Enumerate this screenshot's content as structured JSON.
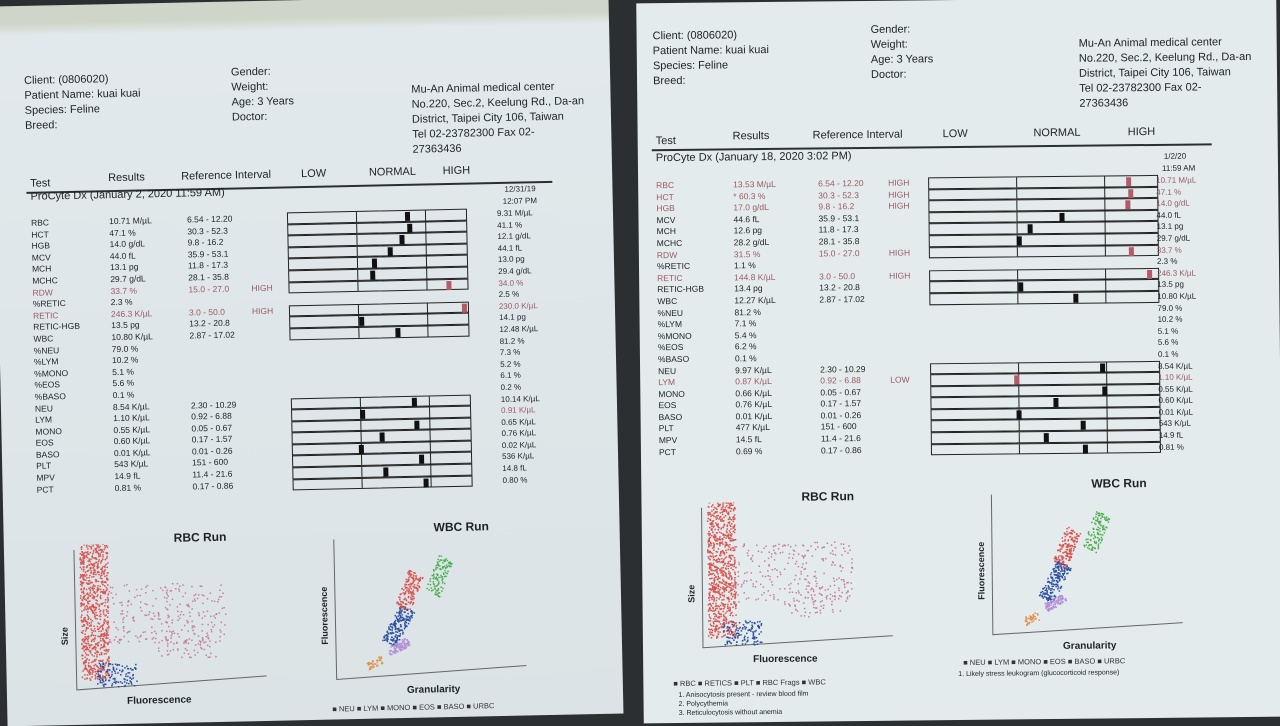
{
  "reports": [
    {
      "id": "left",
      "client": "Client: (0806020)",
      "patient": "Patient Name: kuai kuai",
      "species": "Species: Feline",
      "breed": "Breed:",
      "gender": "Gender:",
      "weight": "Weight:",
      "age": "Age: 3 Years",
      "doctor": "Doctor:",
      "clinic": [
        "Mu-An Animal medical center",
        "No.220, Sec.2, Keelung Rd., Da-an",
        "District, Taipei City 106, Taiwan",
        "Tel 02-23782300  Fax 02-",
        "27363436"
      ],
      "columns": {
        "test": "Test",
        "results": "Results",
        "ref": "Reference Interval",
        "low": "LOW",
        "normal": "NORMAL",
        "high": "HIGH"
      },
      "instrument": "ProCyte Dx (January 2, 2020 11:59 AM)",
      "prev_date": "12/31/19",
      "prev_time": "12:07 PM",
      "rows": [
        {
          "test": "RBC",
          "result": "10.71 M/µL",
          "ref": "6.54 - 12.20",
          "flag": "",
          "prev": "9.31 M/µL",
          "v": 10.71,
          "lo": 6.54,
          "hi": 12.2
        },
        {
          "test": "HCT",
          "result": "47.1 %",
          "ref": "30.3 - 52.3",
          "flag": "",
          "prev": "41.1 %",
          "v": 47.1,
          "lo": 30.3,
          "hi": 52.3
        },
        {
          "test": "HGB",
          "result": "14.0 g/dL",
          "ref": "9.8 - 16.2",
          "flag": "",
          "prev": "12.1 g/dL",
          "v": 14.0,
          "lo": 9.8,
          "hi": 16.2
        },
        {
          "test": "MCV",
          "result": "44.0 fL",
          "ref": "35.9 - 53.1",
          "flag": "",
          "prev": "44.1 fL",
          "v": 44.0,
          "lo": 35.9,
          "hi": 53.1
        },
        {
          "test": "MCH",
          "result": "13.1 pg",
          "ref": "11.8 - 17.3",
          "flag": "",
          "prev": "13.0 pg",
          "v": 13.1,
          "lo": 11.8,
          "hi": 17.3
        },
        {
          "test": "MCHC",
          "result": "29.7 g/dL",
          "ref": "28.1 - 35.8",
          "flag": "",
          "prev": "29.4 g/dL",
          "v": 29.7,
          "lo": 28.1,
          "hi": 35.8
        },
        {
          "test": "RDW",
          "result": "33.7 %",
          "ref": "15.0 - 27.0",
          "flag": "HIGH",
          "prev": "34.0 %",
          "v": 33.7,
          "lo": 15.0,
          "hi": 27.0
        },
        {
          "test": "%RETIC",
          "result": "2.3 %",
          "ref": "",
          "flag": "",
          "prev": "2.5 %"
        },
        {
          "test": "RETIC",
          "result": "246.3 K/µL",
          "ref": "3.0 - 50.0",
          "flag": "HIGH",
          "prev": "230.0 K/µL",
          "v": 246.3,
          "lo": 3.0,
          "hi": 50.0
        },
        {
          "test": "RETIC-HGB",
          "result": "13.5 pg",
          "ref": "13.2 - 20.8",
          "flag": "",
          "prev": "14.1 pg",
          "v": 13.5,
          "lo": 13.2,
          "hi": 20.8
        },
        {
          "test": "WBC",
          "result": "10.80 K/µL",
          "ref": "2.87 - 17.02",
          "flag": "",
          "prev": "12.48 K/µL",
          "v": 10.8,
          "lo": 2.87,
          "hi": 17.02
        },
        {
          "test": "%NEU",
          "result": "79.0 %",
          "ref": "",
          "flag": "",
          "prev": "81.2 %"
        },
        {
          "test": "%LYM",
          "result": "10.2 %",
          "ref": "",
          "flag": "",
          "prev": "7.3 %"
        },
        {
          "test": "%MONO",
          "result": "5.1 %",
          "ref": "",
          "flag": "",
          "prev": "5.2 %"
        },
        {
          "test": "%EOS",
          "result": "5.6 %",
          "ref": "",
          "flag": "",
          "prev": "6.1 %"
        },
        {
          "test": "%BASO",
          "result": "0.1 %",
          "ref": "",
          "flag": "",
          "prev": "0.2 %"
        },
        {
          "test": "NEU",
          "result": "8.54 K/µL",
          "ref": "2.30 - 10.29",
          "flag": "",
          "prev": "10.14 K/µL",
          "v": 8.54,
          "lo": 2.3,
          "hi": 10.29
        },
        {
          "test": "LYM",
          "result": "1.10 K/µL",
          "ref": "0.92 - 6.88",
          "flag": "",
          "prev": "0.91 K/µL",
          "prev_flag": true,
          "v": 1.1,
          "lo": 0.92,
          "hi": 6.88
        },
        {
          "test": "MONO",
          "result": "0.55 K/µL",
          "ref": "0.05 - 0.67",
          "flag": "",
          "prev": "0.65 K/µL",
          "v": 0.55,
          "lo": 0.05,
          "hi": 0.67
        },
        {
          "test": "EOS",
          "result": "0.60 K/µL",
          "ref": "0.17 - 1.57",
          "flag": "",
          "prev": "0.76 K/µL",
          "v": 0.6,
          "lo": 0.17,
          "hi": 1.57
        },
        {
          "test": "BASO",
          "result": "0.01 K/µL",
          "ref": "0.01 - 0.26",
          "flag": "",
          "prev": "0.02 K/µL",
          "v": 0.01,
          "lo": 0.01,
          "hi": 0.26
        },
        {
          "test": "PLT",
          "result": "543 K/µL",
          "ref": "151 - 600",
          "flag": "",
          "prev": "536 K/µL",
          "v": 543,
          "lo": 151,
          "hi": 600
        },
        {
          "test": "MPV",
          "result": "14.9 fL",
          "ref": "11.4 - 21.6",
          "flag": "",
          "prev": "14.8 fL",
          "v": 14.9,
          "lo": 11.4,
          "hi": 21.6
        },
        {
          "test": "PCT",
          "result": "0.81 %",
          "ref": "0.17 - 0.86",
          "flag": "",
          "prev": "0.80 %",
          "v": 0.81,
          "lo": 0.17,
          "hi": 0.86
        }
      ],
      "rbc_title": "RBC Run",
      "wbc_title": "WBC Run",
      "rbc_x": "Fluorescence",
      "rbc_y": "Size",
      "wbc_x": "Granularity",
      "wbc_y": "Fluorescence",
      "wbc_legend": "■ NEU  ■ LYM  ■ MONO  ■ EOS  ■ BASO  ■ URBC",
      "rbc_legend": "",
      "notes": []
    },
    {
      "id": "right",
      "client": "Client: (0806020)",
      "patient": "Patient Name: kuai kuai",
      "species": "Species: Feline",
      "breed": "Breed:",
      "gender": "Gender:",
      "weight": "Weight:",
      "age": "Age: 3 Years",
      "doctor": "Doctor:",
      "clinic": [
        "Mu-An Animal medical center",
        "No.220, Sec.2, Keelung Rd., Da-an",
        "District, Taipei City 106, Taiwan",
        "Tel 02-23782300  Fax 02-",
        "27363436"
      ],
      "columns": {
        "test": "Test",
        "results": "Results",
        "ref": "Reference Interval",
        "low": "LOW",
        "normal": "NORMAL",
        "high": "HIGH"
      },
      "instrument": "ProCyte Dx (January 18, 2020 3:02 PM)",
      "prev_date": "1/2/20",
      "prev_time": "11:59 AM",
      "rows": [
        {
          "test": "RBC",
          "result": "13.53 M/µL",
          "ref": "6.54 - 12.20",
          "flag": "HIGH",
          "prev": "10.71 M/µL",
          "v": 13.53,
          "lo": 6.54,
          "hi": 12.2
        },
        {
          "test": "HCT",
          "result": "* 60.3 %",
          "ref": "30.3 - 52.3",
          "flag": "HIGH",
          "prev": "47.1 %",
          "v": 60.3,
          "lo": 30.3,
          "hi": 52.3
        },
        {
          "test": "HGB",
          "result": "17.0 g/dL",
          "ref": "9.8 - 16.2",
          "flag": "HIGH",
          "prev": "14.0 g/dL",
          "v": 17.0,
          "lo": 9.8,
          "hi": 16.2
        },
        {
          "test": "MCV",
          "result": "44.6 fL",
          "ref": "35.9 - 53.1",
          "flag": "",
          "prev": "44.0 fL",
          "v": 44.6,
          "lo": 35.9,
          "hi": 53.1
        },
        {
          "test": "MCH",
          "result": "12.6 pg",
          "ref": "11.8 - 17.3",
          "flag": "",
          "prev": "13.1 pg",
          "v": 12.6,
          "lo": 11.8,
          "hi": 17.3
        },
        {
          "test": "MCHC",
          "result": "28.2 g/dL",
          "ref": "28.1 - 35.8",
          "flag": "",
          "prev": "29.7 g/dL",
          "v": 28.2,
          "lo": 28.1,
          "hi": 35.8
        },
        {
          "test": "RDW",
          "result": "31.5 %",
          "ref": "15.0 - 27.0",
          "flag": "HIGH",
          "prev": "33.7 %",
          "v": 31.5,
          "lo": 15.0,
          "hi": 27.0
        },
        {
          "test": "%RETIC",
          "result": "1.1 %",
          "ref": "",
          "flag": "",
          "prev": "2.3 %"
        },
        {
          "test": "RETIC",
          "result": "144.8 K/µL",
          "ref": "3.0 - 50.0",
          "flag": "HIGH",
          "prev": "246.3 K/µL",
          "v": 144.8,
          "lo": 3.0,
          "hi": 50.0
        },
        {
          "test": "RETIC-HGB",
          "result": "13.4 pg",
          "ref": "13.2 - 20.8",
          "flag": "",
          "prev": "13.5 pg",
          "v": 13.4,
          "lo": 13.2,
          "hi": 20.8
        },
        {
          "test": "WBC",
          "result": "12.27 K/µL",
          "ref": "2.87 - 17.02",
          "flag": "",
          "prev": "10.80 K/µL",
          "v": 12.27,
          "lo": 2.87,
          "hi": 17.02
        },
        {
          "test": "%NEU",
          "result": "81.2 %",
          "ref": "",
          "flag": "",
          "prev": "79.0 %"
        },
        {
          "test": "%LYM",
          "result": "7.1 %",
          "ref": "",
          "flag": "",
          "prev": "10.2 %"
        },
        {
          "test": "%MONO",
          "result": "5.4 %",
          "ref": "",
          "flag": "",
          "prev": "5.1 %"
        },
        {
          "test": "%EOS",
          "result": "6.2 %",
          "ref": "",
          "flag": "",
          "prev": "5.6 %"
        },
        {
          "test": "%BASO",
          "result": "0.1 %",
          "ref": "",
          "flag": "",
          "prev": "0.1 %"
        },
        {
          "test": "NEU",
          "result": "9.97 K/µL",
          "ref": "2.30 - 10.29",
          "flag": "",
          "prev": "8.54 K/µL",
          "v": 9.97,
          "lo": 2.3,
          "hi": 10.29
        },
        {
          "test": "LYM",
          "result": "0.87 K/µL",
          "ref": "0.92 - 6.88",
          "flag": "LOW",
          "prev": "1.10 K/µL",
          "v": 0.87,
          "lo": 0.92,
          "hi": 6.88
        },
        {
          "test": "MONO",
          "result": "0.66 K/µL",
          "ref": "0.05 - 0.67",
          "flag": "",
          "prev": "0.55 K/µL",
          "v": 0.66,
          "lo": 0.05,
          "hi": 0.67
        },
        {
          "test": "EOS",
          "result": "0.76 K/µL",
          "ref": "0.17 - 1.57",
          "flag": "",
          "prev": "0.60 K/µL",
          "v": 0.76,
          "lo": 0.17,
          "hi": 1.57
        },
        {
          "test": "BASO",
          "result": "0.01 K/µL",
          "ref": "0.01 - 0.26",
          "flag": "",
          "prev": "0.01 K/µL",
          "v": 0.01,
          "lo": 0.01,
          "hi": 0.26
        },
        {
          "test": "PLT",
          "result": "477 K/µL",
          "ref": "151 - 600",
          "flag": "",
          "prev": "543 K/µL",
          "v": 477,
          "lo": 151,
          "hi": 600
        },
        {
          "test": "MPV",
          "result": "14.5 fL",
          "ref": "11.4 - 21.6",
          "flag": "",
          "prev": "14.9 fL",
          "v": 14.5,
          "lo": 11.4,
          "hi": 21.6
        },
        {
          "test": "PCT",
          "result": "0.69 %",
          "ref": "0.17 - 0.86",
          "flag": "",
          "prev": "0.81 %",
          "v": 0.69,
          "lo": 0.17,
          "hi": 0.86
        }
      ],
      "rbc_title": "RBC Run",
      "wbc_title": "WBC Run",
      "rbc_x": "Fluorescence",
      "rbc_y": "Size",
      "wbc_x": "Granularity",
      "wbc_y": "Fluorescence",
      "wbc_legend": "■ NEU  ■ LYM  ■ MONO  ■ EOS  ■ BASO  ■ URBC",
      "rbc_legend": "■ RBC  ■ RETICS  ■ PLT  ■ RBC Frags  ■ WBC",
      "notes": [
        "1. Anisocytosis present - review blood film",
        "2. Polycythemia",
        "3. Reticulocytosis without anemia"
      ],
      "wbc_notes": [
        "1. Likely stress leukogram (glucocorticoid response)"
      ]
    }
  ],
  "colors": {
    "flag": "#9a5a66",
    "marker": "#111111",
    "marker_flag": "#b55a66"
  }
}
